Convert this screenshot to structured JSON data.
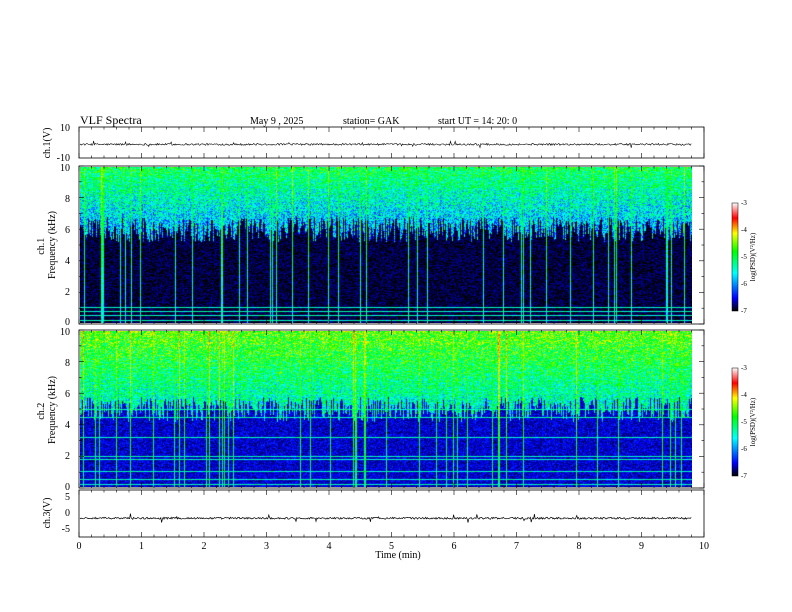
{
  "header": {
    "title": "VLF  Spectra",
    "date": "May 9  , 2025",
    "station": "station= GAK",
    "start_ut": "start  UT  =    14: 20: 0"
  },
  "chart_data": [
    {
      "type": "line",
      "name": "ch1-waveform",
      "ylabel": "ch.1(V)",
      "ylim": [
        -10,
        10
      ],
      "yticks": [
        "10",
        "-10"
      ],
      "xlim": [
        0,
        10
      ],
      "baseline_v": -1.2,
      "noise_v": 1.2
    },
    {
      "type": "heatmap",
      "name": "ch1-spectrogram",
      "ylabel": "ch.1\nFrequency (kHz)",
      "ylim": [
        0,
        10
      ],
      "yticks": [
        "0",
        "2",
        "4",
        "6",
        "8",
        "10"
      ],
      "xlim": [
        0,
        9.8
      ],
      "colorbar": {
        "label": "log(PSD)(V²/Hz)",
        "range": [
          -7,
          -3
        ],
        "ticks": [
          "-3",
          "-4",
          "-5",
          "-6",
          "-7"
        ]
      },
      "background_psd": -6.9,
      "upper_band_khz": [
        6,
        10
      ],
      "upper_band_psd": -5.0,
      "lines_khz": [
        0.2,
        0.5,
        0.8,
        1.0
      ]
    },
    {
      "type": "heatmap",
      "name": "ch2-spectrogram",
      "ylabel": "ch.2\nFrequency (kHz)",
      "ylim": [
        0,
        10
      ],
      "yticks": [
        "0",
        "2",
        "4",
        "6",
        "8",
        "10"
      ],
      "xlim": [
        0,
        9.8
      ],
      "colorbar": {
        "label": "log(PSD)(V²/Hz)",
        "range": [
          -7,
          -3
        ],
        "ticks": [
          "-3",
          "-4",
          "-5",
          "-6",
          "-7"
        ]
      },
      "background_psd": -6.6,
      "upper_band_khz": [
        5,
        10
      ],
      "upper_band_psd": -4.6,
      "lines_khz": [
        0.2,
        0.5,
        1.0,
        1.8,
        2.0,
        3.2,
        4.5,
        5.0,
        6.0
      ]
    },
    {
      "type": "line",
      "name": "ch3-waveform",
      "ylabel": "ch.3(V)",
      "ylim": [
        -5,
        5
      ],
      "yticks": [
        "5",
        "0",
        "-5"
      ],
      "xlim": [
        0,
        10
      ],
      "baseline_v": -1.0,
      "noise_v": 0.4
    }
  ],
  "xaxis": {
    "label": "Time  (min)",
    "range": [
      0,
      10
    ],
    "ticks": [
      "0",
      "1",
      "2",
      "3",
      "4",
      "5",
      "6",
      "7",
      "8",
      "9",
      "10"
    ]
  },
  "colors": {
    "psd_scale": [
      "#000000",
      "#0000ff",
      "#00ffff",
      "#00ff00",
      "#ffff00",
      "#ff0000",
      "#ffffff"
    ]
  }
}
